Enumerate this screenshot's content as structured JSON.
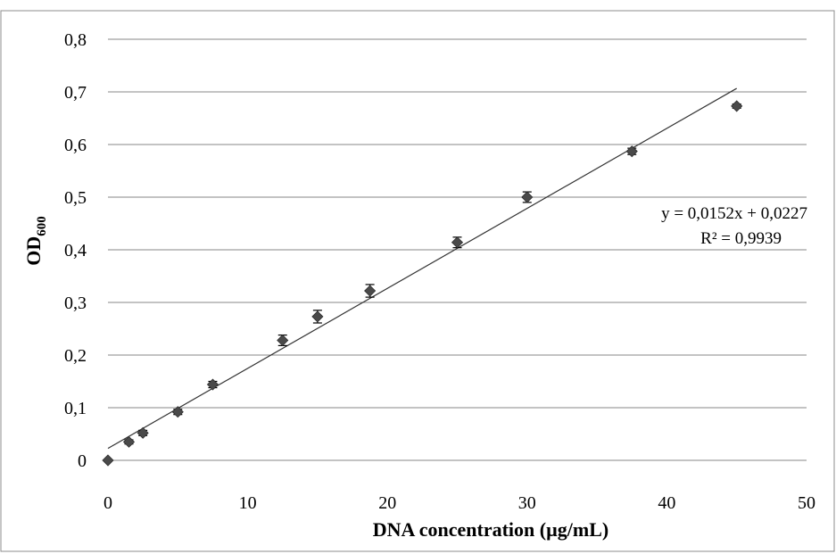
{
  "chart_data": {
    "type": "scatter",
    "xlabel": "DNA concentration (µg/mL)",
    "ylabel_main": "OD",
    "ylabel_sub": "600",
    "xlim": [
      0,
      50
    ],
    "ylim": [
      0,
      0.8
    ],
    "x_ticks": [
      "0",
      "10",
      "20",
      "30",
      "40",
      "50"
    ],
    "y_ticks": [
      "0",
      "0,1",
      "0,2",
      "0,3",
      "0,4",
      "0,5",
      "0,6",
      "0,7",
      "0,8"
    ],
    "grid": "horizontal",
    "marker": "diamond",
    "colors": {
      "marker": "#4a4a4a",
      "line": "#333333",
      "grid": "#878787"
    },
    "series": [
      {
        "x": [
          0,
          1.5,
          2.5,
          5,
          7.5,
          12.5,
          15,
          18.75,
          25,
          30,
          37.5,
          45
        ],
        "y": [
          0,
          0.035,
          0.052,
          0.092,
          0.144,
          0.228,
          0.273,
          0.322,
          0.414,
          0.5,
          0.587,
          0.673
        ],
        "error": [
          0,
          0.004,
          0.005,
          0.005,
          0.006,
          0.01,
          0.012,
          0.012,
          0.01,
          0.01,
          0.006,
          0.004
        ]
      }
    ],
    "trendline": {
      "slope": 0.0152,
      "intercept": 0.0227,
      "x_range": [
        0,
        45
      ]
    },
    "annotations": {
      "equation": "y = 0,0152x + 0,0227",
      "r_squared": "R² = 0,9939"
    }
  }
}
